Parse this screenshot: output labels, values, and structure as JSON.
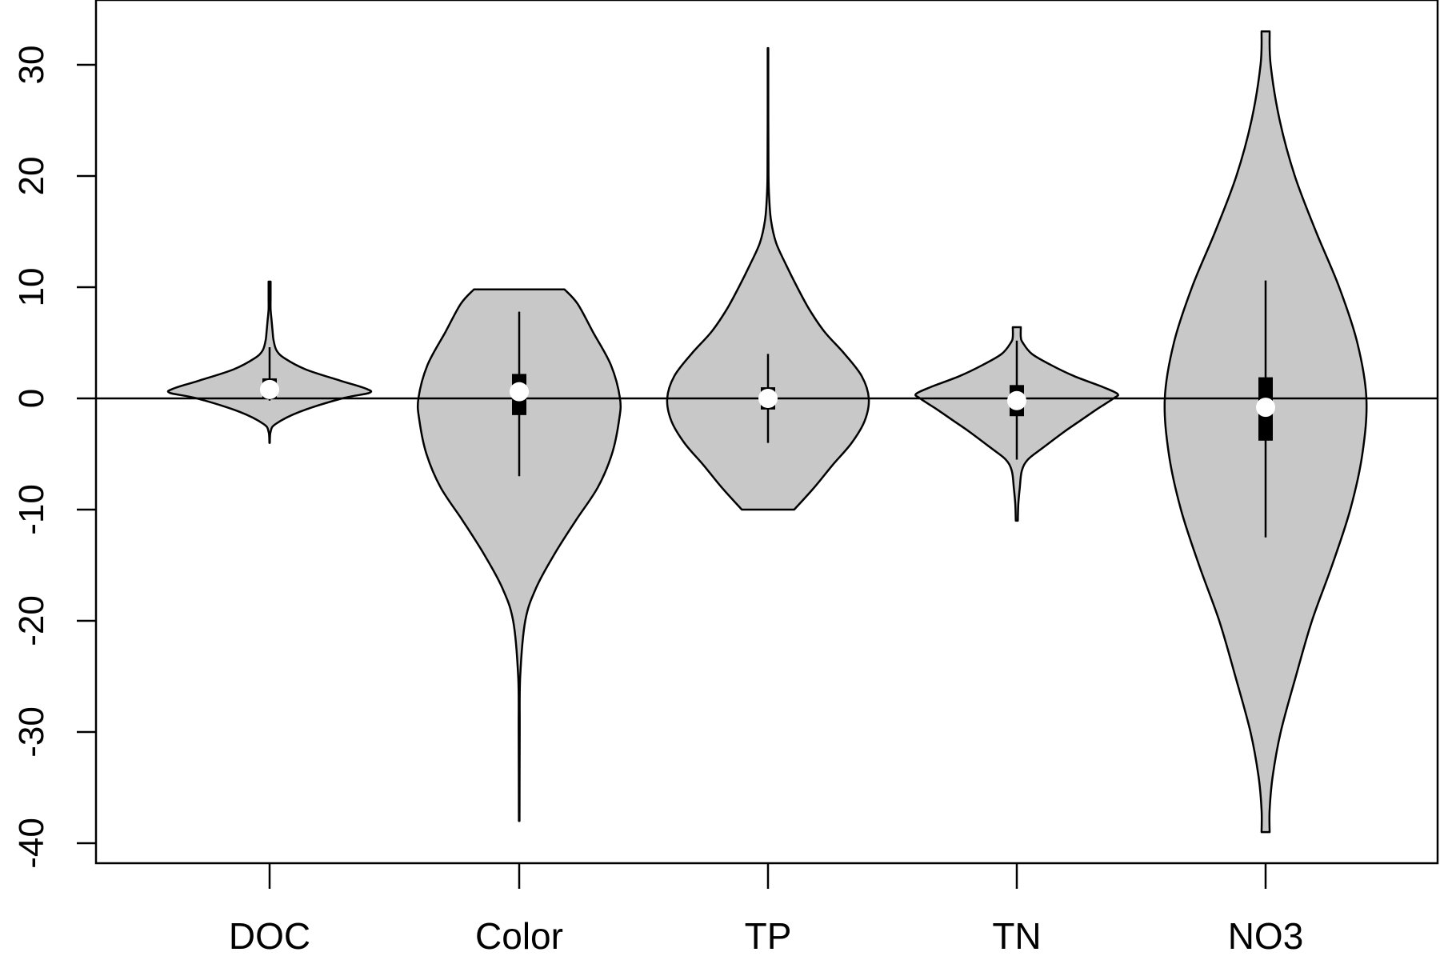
{
  "chart_data": {
    "type": "violin",
    "title": "",
    "xlabel": "",
    "ylabel": "",
    "ylim": [
      -42,
      36
    ],
    "yticks": [
      30,
      20,
      10,
      0,
      -10,
      -20,
      -30,
      -40
    ],
    "reference_line_y": 0,
    "fill_color": "#c8c8c8",
    "categories": [
      "DOC",
      "Color",
      "TP",
      "TN",
      "NO3"
    ],
    "series": [
      {
        "category": "DOC",
        "min": -4,
        "max": 10.5,
        "q1": 0,
        "q3": 1.8,
        "median": 0.8,
        "whisker_low": -0.2,
        "whisker_high": 4.6,
        "profile": [
          [
            -4,
            0.002
          ],
          [
            -3,
            0.01
          ],
          [
            -2.3,
            0.06
          ],
          [
            -1.2,
            0.3
          ],
          [
            0,
            0.72
          ],
          [
            0.5,
            0.99
          ],
          [
            0.9,
            0.95
          ],
          [
            1.6,
            0.7
          ],
          [
            2.6,
            0.36
          ],
          [
            3.6,
            0.15
          ],
          [
            4.3,
            0.07
          ],
          [
            5.2,
            0.04
          ],
          [
            6,
            0.03
          ],
          [
            7,
            0.02
          ],
          [
            8,
            0.01
          ],
          [
            9,
            0.01
          ],
          [
            10,
            0.01
          ],
          [
            10.5,
            0.01
          ]
        ]
      },
      {
        "category": "Color",
        "min": -38,
        "max": 9.8,
        "q1": -1.5,
        "q3": 2.2,
        "median": 0.6,
        "whisker_low": -7,
        "whisker_high": 7.8,
        "profile": [
          [
            -38,
            0.003
          ],
          [
            -30,
            0.005
          ],
          [
            -25,
            0.01
          ],
          [
            -20,
            0.06
          ],
          [
            -17,
            0.17
          ],
          [
            -14,
            0.35
          ],
          [
            -11,
            0.56
          ],
          [
            -8,
            0.78
          ],
          [
            -5,
            0.92
          ],
          [
            -2,
            0.99
          ],
          [
            0,
            1.0
          ],
          [
            3,
            0.91
          ],
          [
            6,
            0.73
          ],
          [
            8.5,
            0.58
          ],
          [
            9.8,
            0.45
          ]
        ]
      },
      {
        "category": "TP",
        "min": -10,
        "max": 31.5,
        "q1": -1,
        "q3": 1,
        "median": 0,
        "whisker_low": -4,
        "whisker_high": 4,
        "profile": [
          [
            -10,
            0.26
          ],
          [
            -8,
            0.46
          ],
          [
            -6,
            0.64
          ],
          [
            -4,
            0.83
          ],
          [
            -2,
            0.96
          ],
          [
            0,
            1.0
          ],
          [
            2,
            0.93
          ],
          [
            4,
            0.76
          ],
          [
            6,
            0.56
          ],
          [
            8,
            0.41
          ],
          [
            10,
            0.29
          ],
          [
            12,
            0.18
          ],
          [
            14,
            0.08
          ],
          [
            16,
            0.03
          ],
          [
            18,
            0.012
          ],
          [
            20,
            0.005
          ],
          [
            25,
            0.003
          ],
          [
            31.5,
            0.003
          ]
        ]
      },
      {
        "category": "TN",
        "min": -11,
        "max": 6.4,
        "q1": -1.6,
        "q3": 1.2,
        "median": -0.2,
        "whisker_low": -5.5,
        "whisker_high": 5.2,
        "profile": [
          [
            -11,
            0.01
          ],
          [
            -9.5,
            0.015
          ],
          [
            -8,
            0.03
          ],
          [
            -6.5,
            0.05
          ],
          [
            -5.5,
            0.11
          ],
          [
            -4.5,
            0.25
          ],
          [
            -3,
            0.47
          ],
          [
            -2,
            0.63
          ],
          [
            -1,
            0.79
          ],
          [
            0,
            0.96
          ],
          [
            0.4,
            1.0
          ],
          [
            1,
            0.86
          ],
          [
            2,
            0.57
          ],
          [
            3,
            0.34
          ],
          [
            4,
            0.15
          ],
          [
            5,
            0.06
          ],
          [
            5.5,
            0.04
          ],
          [
            6.4,
            0.04
          ]
        ]
      },
      {
        "category": "NO3",
        "min": -39,
        "max": 33,
        "q1": -3.8,
        "q3": 1.9,
        "median": -0.8,
        "whisker_low": -12.5,
        "whisker_high": 10.6,
        "profile": [
          [
            -39,
            0.04
          ],
          [
            -37,
            0.04
          ],
          [
            -34,
            0.07
          ],
          [
            -30,
            0.15
          ],
          [
            -25,
            0.3
          ],
          [
            -20,
            0.46
          ],
          [
            -15,
            0.66
          ],
          [
            -10,
            0.84
          ],
          [
            -5,
            0.96
          ],
          [
            0,
            1.0
          ],
          [
            5,
            0.91
          ],
          [
            10,
            0.73
          ],
          [
            15,
            0.5
          ],
          [
            20,
            0.29
          ],
          [
            25,
            0.14
          ],
          [
            30,
            0.05
          ],
          [
            33,
            0.04
          ]
        ]
      }
    ]
  }
}
